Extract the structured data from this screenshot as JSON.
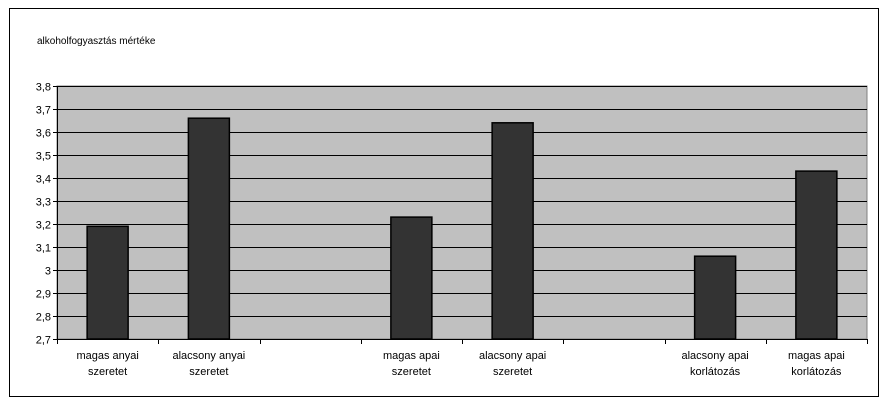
{
  "chart_data": {
    "type": "bar",
    "title": "alkoholfogyasztás mértéke",
    "xlabel": "",
    "ylabel": "",
    "ylim": [
      2.7,
      3.8
    ],
    "ytick_step": 0.1,
    "ytick_labels": [
      "2,7",
      "2,8",
      "2,9",
      "3",
      "3,1",
      "3,2",
      "3,3",
      "3,4",
      "3,5",
      "3,6",
      "3,7",
      "3,8"
    ],
    "grid": true,
    "legend": "none",
    "plot_background": "#c0c0c0",
    "bar_color": "#333333",
    "categories": [
      [
        "magas anyai",
        "szeretet"
      ],
      [
        "alacsony anyai",
        "szeretet"
      ],
      [
        "",
        ""
      ],
      [
        "magas apai",
        "szeretet"
      ],
      [
        "alacsony apai",
        "szeretet"
      ],
      [
        "",
        ""
      ],
      [
        "alacsony apai",
        "korlátozás"
      ],
      [
        "magas apai",
        "korlátozás"
      ]
    ],
    "values": [
      3.19,
      3.66,
      null,
      3.23,
      3.64,
      null,
      3.06,
      3.43
    ]
  }
}
